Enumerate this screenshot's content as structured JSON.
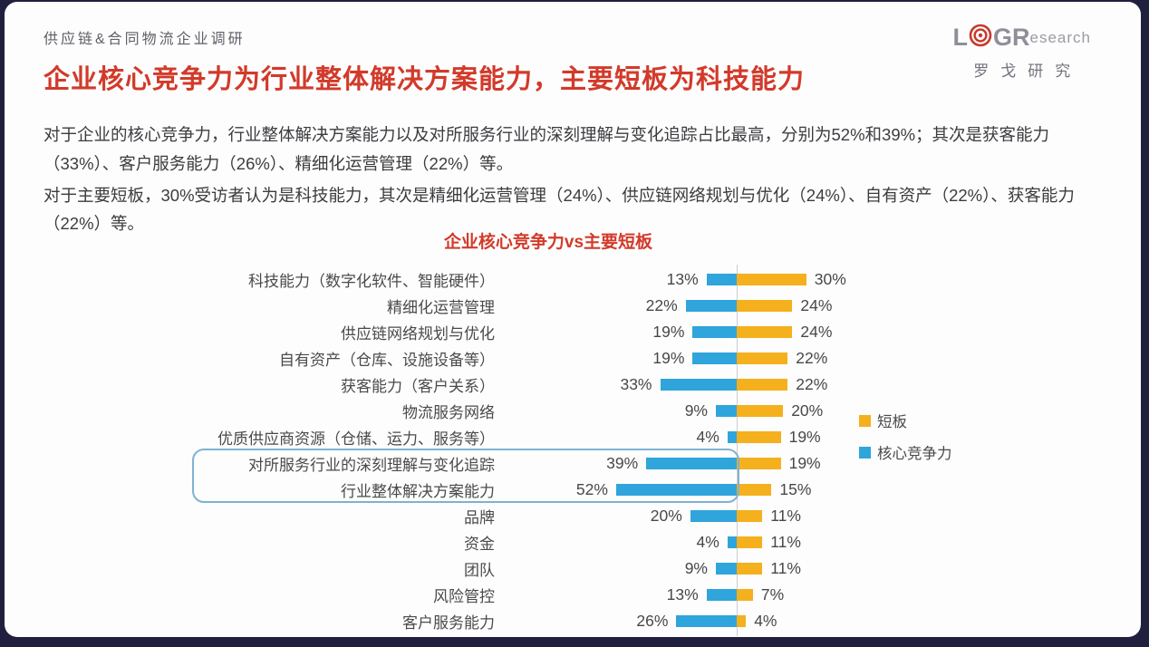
{
  "slide": {
    "eyebrow": "供应链&合同物流企业调研",
    "title": "企业核心竞争力为行业整体解决方案能力，主要短板为科技能力",
    "paragraphs": [
      "对于企业的核心竞争力，行业整体解决方案能力以及对所服务行业的深刻理解与变化追踪占比最高，分别为52%和39%；其次是获客能力（33%）、客户服务能力（26%）、精细化运营管理（22%）等。",
      "对于主要短板，30%受访者认为是科技能力，其次是精细化运营管理（24%）、供应链网络规划与优化（24%）、自有资产（22%）、获客能力（22%）等。"
    ],
    "logo": {
      "part_l": "L",
      "part_gr": "GR",
      "part_research": "esearch",
      "subtitle": "罗戈研究"
    }
  },
  "chart_data": {
    "type": "bar",
    "orientation": "horizontal-diverging",
    "title": "企业核心竞争力vs主要短板",
    "categories": [
      "科技能力（数字化软件、智能硬件）",
      "精细化运营管理",
      "供应链网络规划与优化",
      "自有资产（仓库、设施设备等）",
      "获客能力（客户关系）",
      "物流服务网络",
      "优质供应商资源（仓储、运力、服务等）",
      "对所服务行业的深刻理解与变化追踪",
      "行业整体解决方案能力",
      "品牌",
      "资金",
      "团队",
      "风险管控",
      "客户服务能力"
    ],
    "series": [
      {
        "name": "核心竞争力",
        "side": "left",
        "color": "#2FA5DB",
        "values": [
          13,
          22,
          19,
          19,
          33,
          9,
          4,
          39,
          52,
          20,
          4,
          9,
          13,
          26
        ]
      },
      {
        "name": "短板",
        "side": "right",
        "color": "#F5B01D",
        "values": [
          30,
          24,
          24,
          22,
          22,
          20,
          19,
          19,
          15,
          11,
          11,
          11,
          7,
          4
        ]
      }
    ],
    "unit": "%",
    "legend": [
      "短板",
      "核心竞争力"
    ],
    "legend_position": "right",
    "highlighted_categories": [
      "对所服务行业的深刻理解与变化追踪",
      "行业整体解决方案能力"
    ],
    "axis": {
      "center_line": true,
      "gridlines": false
    },
    "colors": {
      "title_red": "#d23a2a",
      "axis_gray": "#cdcdcd",
      "highlight_border": "#7fb2d2"
    }
  }
}
